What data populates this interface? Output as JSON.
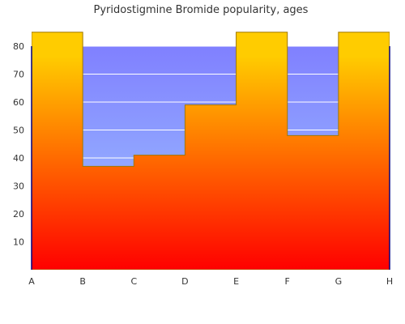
{
  "chart_data": {
    "type": "area",
    "title": "Pyridostigmine Bromide popularity, ages",
    "xlabel": "",
    "ylabel": "",
    "categories": [
      "A",
      "B",
      "C",
      "D",
      "E",
      "F",
      "G",
      "H"
    ],
    "values": [
      85,
      37,
      41,
      59,
      85,
      48,
      85,
      85
    ],
    "y_ticks": [
      10,
      20,
      30,
      40,
      50,
      60,
      70,
      80
    ],
    "ylim": [
      0,
      80
    ],
    "step": true,
    "grid": true,
    "colors": {
      "fill_top": "#ffcc00",
      "fill_bottom": "#ff0000",
      "plot_bg_top": "#8080ff",
      "plot_bg_bottom": "#a0c8ff",
      "outline": "#a07800",
      "gridline": "#ffffff",
      "axis": "#000080"
    }
  }
}
